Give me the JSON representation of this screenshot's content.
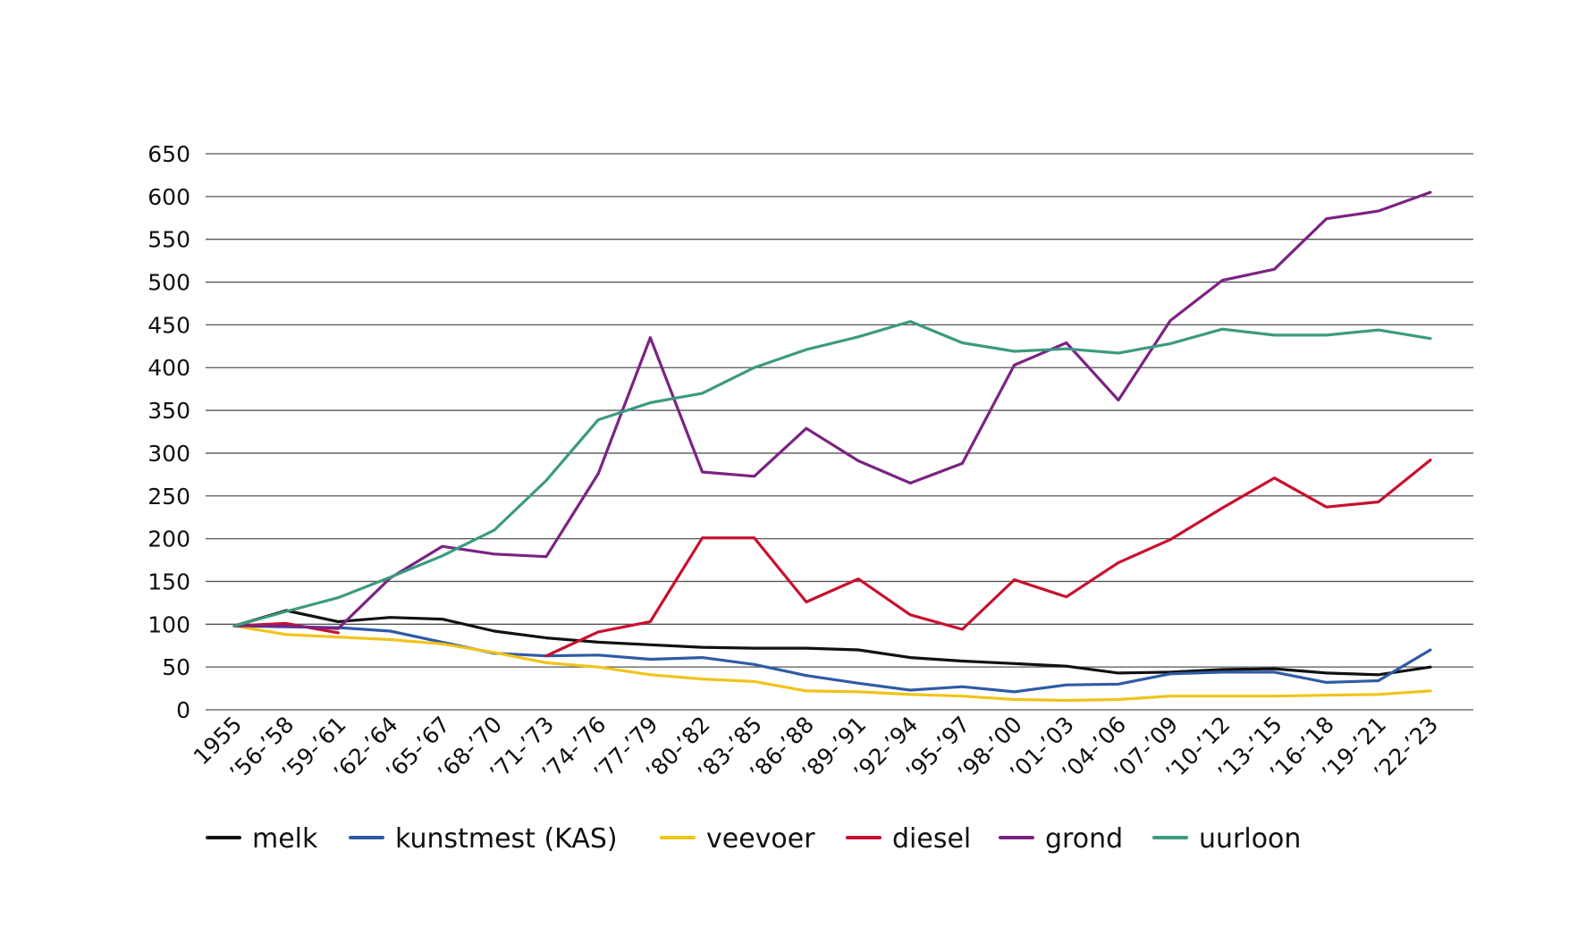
{
  "chart_data": {
    "type": "line",
    "title": "",
    "xlabel": "",
    "ylabel": "",
    "ylim": [
      0,
      650
    ],
    "yticks": [
      0,
      50,
      100,
      150,
      200,
      250,
      300,
      350,
      400,
      450,
      500,
      550,
      600,
      650
    ],
    "grid": true,
    "legend_placement": "bottom-left",
    "categories": [
      "1955",
      "’56-’58",
      "’59-’61",
      "’62-’64",
      "’65-’67",
      "’68-’70",
      "’71-’73",
      "’74-’76",
      "’77-’79",
      "’80-’82",
      "’83-’85",
      "’86-’88",
      "’89-’91",
      "’92-’94",
      "’95-’97",
      "’98-’00",
      "’01-’03",
      "’04-’06",
      "’07-’09",
      "’10-’12",
      "’13-’15",
      "’16-’18",
      "’19-’21",
      "’22-’23"
    ],
    "series": [
      {
        "name": "melk",
        "color": "#111111",
        "values": [
          98,
          116,
          103,
          108,
          106,
          92,
          84,
          79,
          76,
          73,
          72,
          72,
          70,
          61,
          57,
          54,
          51,
          43,
          44,
          47,
          48,
          43,
          41,
          50
        ]
      },
      {
        "name": "kunstmest (KAS)",
        "color": "#2f5aa5",
        "values": [
          98,
          97,
          96,
          92,
          79,
          66,
          63,
          64,
          59,
          61,
          53,
          40,
          31,
          23,
          27,
          21,
          29,
          30,
          42,
          44,
          44,
          32,
          34,
          70
        ]
      },
      {
        "name": "veevoer",
        "color": "#f0c419",
        "values": [
          98,
          88,
          85,
          82,
          77,
          67,
          55,
          50,
          41,
          36,
          33,
          22,
          21,
          18,
          16,
          12,
          11,
          12,
          16,
          16,
          16,
          17,
          18,
          22
        ]
      },
      {
        "name": "diesel",
        "color": "#c8102e",
        "values": [
          98,
          101,
          90,
          null,
          null,
          null,
          63,
          91,
          103,
          201,
          201,
          126,
          153,
          111,
          94,
          152,
          132,
          172,
          199,
          236,
          271,
          237,
          243,
          292
        ]
      },
      {
        "name": "grond",
        "color": "#7b2382",
        "values": [
          98,
          98,
          95,
          154,
          191,
          182,
          179,
          276,
          435,
          278,
          273,
          329,
          291,
          265,
          288,
          403,
          429,
          362,
          455,
          502,
          515,
          574,
          583,
          605
        ]
      },
      {
        "name": "uurloon",
        "color": "#3c9a80",
        "values": [
          98,
          115,
          131,
          155,
          180,
          210,
          268,
          339,
          359,
          370,
          400,
          421,
          436,
          454,
          429,
          419,
          422,
          417,
          428,
          445,
          438,
          438,
          444,
          434
        ]
      }
    ]
  }
}
